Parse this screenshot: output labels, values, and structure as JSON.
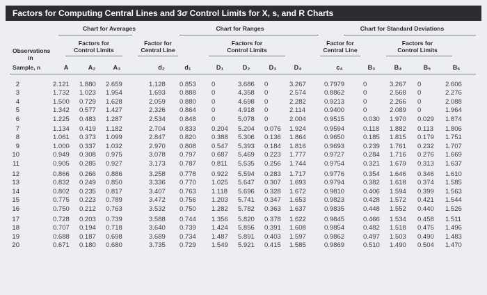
{
  "title": {
    "prefix": "Factors for Computing Central Lines and 3",
    "sigma": "σ",
    "suffix": " Control Limits for X, s, and R Charts"
  },
  "group_headers": {
    "averages": "Chart for Averages",
    "ranges": "Chart for Ranges",
    "std_dev": "Chart for Standard Deviations"
  },
  "sub_headers": {
    "observations": "Observations",
    "in": "in",
    "sample_n": "Sample, n",
    "factors_control_limits": "Factors for\nControl Limits",
    "factor_central_line": "Factor for\nCentral Line"
  },
  "symbols": [
    "A",
    "A₂",
    "A₃",
    "d₂",
    "d₁",
    "D₁",
    "D₂",
    "D₃",
    "D₄",
    "c₄",
    "B₃",
    "B₄",
    "B₅",
    "B₆"
  ],
  "rows": [
    {
      "n": "2",
      "A": "2.121",
      "A2": "1.880",
      "A3": "2.659",
      "d2": "1.128",
      "d1": "0.853",
      "D1": "0",
      "D2": "3.686",
      "D3": "0",
      "D4": "3.267",
      "c4": "0.7979",
      "B3": "0",
      "B4": "3.267",
      "B5": "0",
      "B6": "2.606"
    },
    {
      "n": "3",
      "A": "1.732",
      "A2": "1.023",
      "A3": "1.954",
      "d2": "1.693",
      "d1": "0.888",
      "D1": "0",
      "D2": "4.358",
      "D3": "0",
      "D4": "2.574",
      "c4": "0.8862",
      "B3": "0",
      "B4": "2.568",
      "B5": "0",
      "B6": "2.276"
    },
    {
      "n": "4",
      "A": "1.500",
      "A2": "0.729",
      "A3": "1.628",
      "d2": "2.059",
      "d1": "0.880",
      "D1": "0",
      "D2": "4.698",
      "D3": "0",
      "D4": "2.282",
      "c4": "0.9213",
      "B3": "0",
      "B4": "2.266",
      "B5": "0",
      "B6": "2.088"
    },
    {
      "n": "5",
      "A": "1.342",
      "A2": "0.577",
      "A3": "1.427",
      "d2": "2.326",
      "d1": "0.864",
      "D1": "0",
      "D2": "4.918",
      "D3": "0",
      "D4": "2.114",
      "c4": "0.9400",
      "B3": "0",
      "B4": "2.089",
      "B5": "0",
      "B6": "1.964"
    },
    {
      "n": "6",
      "A": "1.225",
      "A2": "0.483",
      "A3": "1.287",
      "d2": "2.534",
      "d1": "0.848",
      "D1": "0",
      "D2": "5.078",
      "D3": "0",
      "D4": "2.004",
      "c4": "0.9515",
      "B3": "0.030",
      "B4": "1.970",
      "B5": "0.029",
      "B6": "1.874"
    },
    {
      "n": "7",
      "A": "1.134",
      "A2": "0.419",
      "A3": "1.182",
      "d2": "2.704",
      "d1": "0.833",
      "D1": "0.204",
      "D2": "5.204",
      "D3": "0.076",
      "D4": "1.924",
      "c4": "0.9594",
      "B3": "0.118",
      "B4": "1.882",
      "B5": "0.113",
      "B6": "1.806"
    },
    {
      "n": "8",
      "A": "1.061",
      "A2": "0.373",
      "A3": "1.099",
      "d2": "2.847",
      "d1": "0.820",
      "D1": "0.388",
      "D2": "5.306",
      "D3": "0.136",
      "D4": "1.864",
      "c4": "0.9650",
      "B3": "0.185",
      "B4": "1.815",
      "B5": "0.179",
      "B6": "1.751"
    },
    {
      "n": "9",
      "A": "1.000",
      "A2": "0.337",
      "A3": "1.032",
      "d2": "2.970",
      "d1": "0.808",
      "D1": "0.547",
      "D2": "5.393",
      "D3": "0.184",
      "D4": "1.816",
      "c4": "0.9693",
      "B3": "0.239",
      "B4": "1.761",
      "B5": "0.232",
      "B6": "1.707"
    },
    {
      "n": "10",
      "A": "0.949",
      "A2": "0.308",
      "A3": "0.975",
      "d2": "3.078",
      "d1": "0.797",
      "D1": "0.687",
      "D2": "5.469",
      "D3": "0.223",
      "D4": "1.777",
      "c4": "0.9727",
      "B3": "0.284",
      "B4": "1.716",
      "B5": "0.276",
      "B6": "1.669"
    },
    {
      "n": "11",
      "A": "0.905",
      "A2": "0.285",
      "A3": "0.927",
      "d2": "3.173",
      "d1": "0.787",
      "D1": "0.811",
      "D2": "5.535",
      "D3": "0.256",
      "D4": "1.744",
      "c4": "0.9754",
      "B3": "0.321",
      "B4": "1.679",
      "B5": "0.313",
      "B6": "1.637"
    },
    {
      "n": "12",
      "A": "0.866",
      "A2": "0.266",
      "A3": "0.886",
      "d2": "3.258",
      "d1": "0.778",
      "D1": "0.922",
      "D2": "5.594",
      "D3": "0.283",
      "D4": "1.717",
      "c4": "0.9776",
      "B3": "0.354",
      "B4": "1.646",
      "B5": "0.346",
      "B6": "1.610"
    },
    {
      "n": "13",
      "A": "0.832",
      "A2": "0.249",
      "A3": "0.850",
      "d2": "3.336",
      "d1": "0.770",
      "D1": "1.025",
      "D2": "5.647",
      "D3": "0.307",
      "D4": "1.693",
      "c4": "0.9794",
      "B3": "0.382",
      "B4": "1.618",
      "B5": "0.374",
      "B6": "1.585"
    },
    {
      "n": "14",
      "A": "0.802",
      "A2": "0.235",
      "A3": "0.817",
      "d2": "3.407",
      "d1": "0.763",
      "D1": "1.118",
      "D2": "5.696",
      "D3": "0.328",
      "D4": "1.672",
      "c4": "0.9810",
      "B3": "0.406",
      "B4": "1.594",
      "B5": "0.399",
      "B6": "1.563"
    },
    {
      "n": "15",
      "A": "0.775",
      "A2": "0.223",
      "A3": "0.789",
      "d2": "3.472",
      "d1": "0.756",
      "D1": "1.203",
      "D2": "5.741",
      "D3": "0.347",
      "D4": "1.653",
      "c4": "0.9823",
      "B3": "0.428",
      "B4": "1.572",
      "B5": "0.421",
      "B6": "1.544"
    },
    {
      "n": "16",
      "A": "0.750",
      "A2": "0.212",
      "A3": "0.763",
      "d2": "3.532",
      "d1": "0.750",
      "D1": "1.282",
      "D2": "5.782",
      "D3": "0.363",
      "D4": "1.637",
      "c4": "0.9835",
      "B3": "0.448",
      "B4": "1.552",
      "B5": "0.440",
      "B6": "1.526"
    },
    {
      "n": "17",
      "A": "0.728",
      "A2": "0.203",
      "A3": "0.739",
      "d2": "3.588",
      "d1": "0.744",
      "D1": "1.356",
      "D2": "5.820",
      "D3": "0.378",
      "D4": "1.622",
      "c4": "0.9845",
      "B3": "0.466",
      "B4": "1.534",
      "B5": "0.458",
      "B6": "1.511"
    },
    {
      "n": "18",
      "A": "0.707",
      "A2": "0.194",
      "A3": "0.718",
      "d2": "3.640",
      "d1": "0.739",
      "D1": "1.424",
      "D2": "5.856",
      "D3": "0.391",
      "D4": "1.608",
      "c4": "0.9854",
      "B3": "0.482",
      "B4": "1.518",
      "B5": "0.475",
      "B6": "1.496"
    },
    {
      "n": "19",
      "A": "0.688",
      "A2": "0.187",
      "A3": "0.698",
      "d2": "3.689",
      "d1": "0.734",
      "D1": "1.487",
      "D2": "5.891",
      "D3": "0.403",
      "D4": "1.597",
      "c4": "0.9862",
      "B3": "0.497",
      "B4": "1.503",
      "B5": "0.490",
      "B6": "1.483"
    },
    {
      "n": "20",
      "A": "0.671",
      "A2": "0.180",
      "A3": "0.680",
      "d2": "3.735",
      "d1": "0.729",
      "D1": "1.549",
      "D2": "5.921",
      "D3": "0.415",
      "D4": "1.585",
      "c4": "0.9869",
      "B3": "0.510",
      "B4": "1.490",
      "B5": "0.504",
      "B6": "1.470"
    }
  ]
}
